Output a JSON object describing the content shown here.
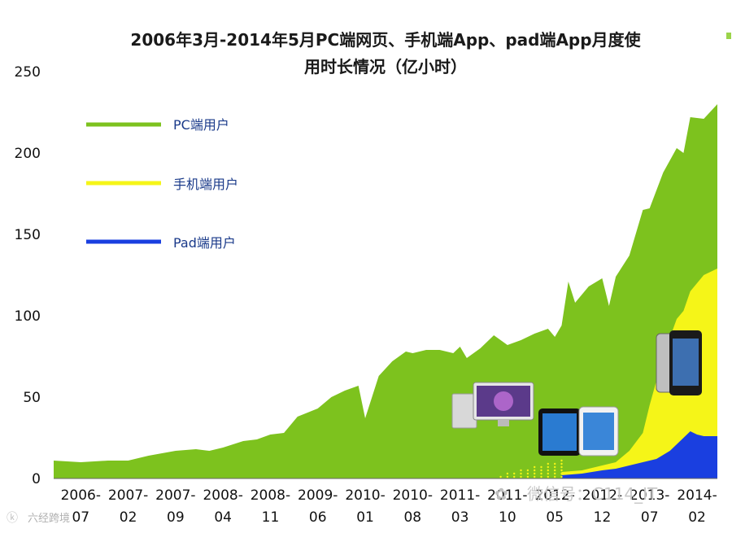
{
  "chart_data": {
    "type": "area",
    "title_lines": [
      "2006年3月-2014年5月PC端网页、手机端App、pad端App月度使",
      "用时长情况（亿小时）"
    ],
    "ylim": [
      0,
      250
    ],
    "yticks": [
      0,
      50,
      100,
      150,
      200,
      250
    ],
    "xticks": [
      {
        "top": "2006-",
        "bottom": "07",
        "x": "2006-07"
      },
      {
        "top": "2007-",
        "bottom": "02",
        "x": "2007-02"
      },
      {
        "top": "2007-",
        "bottom": "09",
        "x": "2007-09"
      },
      {
        "top": "2008-",
        "bottom": "04",
        "x": "2008-04"
      },
      {
        "top": "2008-",
        "bottom": "11",
        "x": "2008-11"
      },
      {
        "top": "2009-",
        "bottom": "06",
        "x": "2009-06"
      },
      {
        "top": "2010-",
        "bottom": "01",
        "x": "2010-01"
      },
      {
        "top": "2010-",
        "bottom": "08",
        "x": "2010-08"
      },
      {
        "top": "2011-",
        "bottom": "03",
        "x": "2011-03"
      },
      {
        "top": "2011-",
        "bottom": "10",
        "x": "2011-10"
      },
      {
        "top": "2012-",
        "bottom": "05",
        "x": "2012-05"
      },
      {
        "top": "2012-",
        "bottom": "12",
        "x": "2012-12"
      },
      {
        "top": "2013-",
        "bottom": "07",
        "x": "2013-07"
      },
      {
        "top": "2014-",
        "bottom": "02",
        "x": "2014-02"
      }
    ],
    "series": [
      {
        "name": "PC端用户",
        "color": "#7dc21e",
        "points": [
          [
            "2006-03",
            11
          ],
          [
            "2006-07",
            10
          ],
          [
            "2006-11",
            11
          ],
          [
            "2007-02",
            11
          ],
          [
            "2007-05",
            14
          ],
          [
            "2007-09",
            17
          ],
          [
            "2007-12",
            18
          ],
          [
            "2008-02",
            17
          ],
          [
            "2008-04",
            19
          ],
          [
            "2008-07",
            23
          ],
          [
            "2008-09",
            24
          ],
          [
            "2008-11",
            27
          ],
          [
            "2009-01",
            28
          ],
          [
            "2009-03",
            38
          ],
          [
            "2009-06",
            43
          ],
          [
            "2009-08",
            50
          ],
          [
            "2009-10",
            54
          ],
          [
            "2009-12",
            57
          ],
          [
            "2010-01",
            37
          ],
          [
            "2010-03",
            63
          ],
          [
            "2010-05",
            72
          ],
          [
            "2010-07",
            78
          ],
          [
            "2010-08",
            77
          ],
          [
            "2010-10",
            79
          ],
          [
            "2010-12",
            79
          ],
          [
            "2011-02",
            77
          ],
          [
            "2011-03",
            81
          ],
          [
            "2011-04",
            74
          ],
          [
            "2011-06",
            80
          ],
          [
            "2011-08",
            88
          ],
          [
            "2011-10",
            82
          ],
          [
            "2011-12",
            85
          ],
          [
            "2012-02",
            89
          ],
          [
            "2012-04",
            92
          ],
          [
            "2012-05",
            87
          ],
          [
            "2012-06",
            94
          ],
          [
            "2012-07",
            121
          ],
          [
            "2012-08",
            108
          ],
          [
            "2012-10",
            118
          ],
          [
            "2012-12",
            123
          ],
          [
            "2013-01",
            106
          ],
          [
            "2013-02",
            124
          ],
          [
            "2013-04",
            137
          ],
          [
            "2013-06",
            165
          ],
          [
            "2013-07",
            166
          ],
          [
            "2013-09",
            188
          ],
          [
            "2013-11",
            203
          ],
          [
            "2013-12",
            200
          ],
          [
            "2014-01",
            222
          ],
          [
            "2014-03",
            221
          ],
          [
            "2014-05",
            230
          ]
        ]
      },
      {
        "name": "手机端用户",
        "color": "#f5f518",
        "points": [
          [
            "2012-06",
            4
          ],
          [
            "2012-09",
            5
          ],
          [
            "2012-12",
            8
          ],
          [
            "2013-02",
            10
          ],
          [
            "2013-04",
            17
          ],
          [
            "2013-06",
            28
          ],
          [
            "2013-07",
            45
          ],
          [
            "2013-09",
            75
          ],
          [
            "2013-11",
            98
          ],
          [
            "2013-12",
            103
          ],
          [
            "2014-01",
            115
          ],
          [
            "2014-03",
            125
          ],
          [
            "2014-05",
            129
          ]
        ]
      },
      {
        "name": "Pad端用户",
        "color": "#1a3fe0",
        "points": [
          [
            "2012-06",
            2
          ],
          [
            "2012-09",
            3
          ],
          [
            "2012-12",
            5
          ],
          [
            "2013-02",
            6
          ],
          [
            "2013-04",
            8
          ],
          [
            "2013-06",
            10
          ],
          [
            "2013-08",
            12
          ],
          [
            "2013-10",
            17
          ],
          [
            "2013-12",
            25
          ],
          [
            "2014-01",
            29
          ],
          [
            "2014-02",
            27
          ],
          [
            "2014-03",
            26
          ],
          [
            "2014-05",
            26
          ]
        ]
      }
    ],
    "legend": [
      {
        "label": "PC端用户",
        "color": "#7dc21e"
      },
      {
        "label": "手机端用户",
        "color": "#f5f518"
      },
      {
        "label": "Pad端用户",
        "color": "#1a3fe0"
      }
    ],
    "watermarks": [
      "微信号：C114_IT",
      "六经跨境"
    ]
  }
}
